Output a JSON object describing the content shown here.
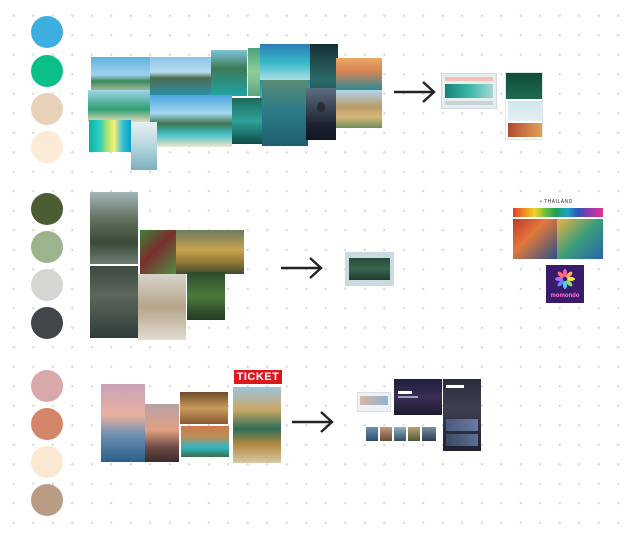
{
  "swatches": {
    "row1": [
      "#3eaee0",
      "#0bbf8a",
      "#e7d1b8",
      "#fbebd6"
    ],
    "row2": [
      "#4d5d33",
      "#9cb38d",
      "#d5d6d1",
      "#41464b"
    ],
    "row3": [
      "#d9a8a9",
      "#d4866a",
      "#fbe9d3",
      "#b89c83"
    ]
  },
  "logos": {
    "ticket": "TICKET",
    "thailand": "• THAILAND",
    "momondo": "momondo"
  },
  "icons": {
    "arrow": "arrow-right-icon",
    "momondo": "momondo-flower-icon"
  }
}
